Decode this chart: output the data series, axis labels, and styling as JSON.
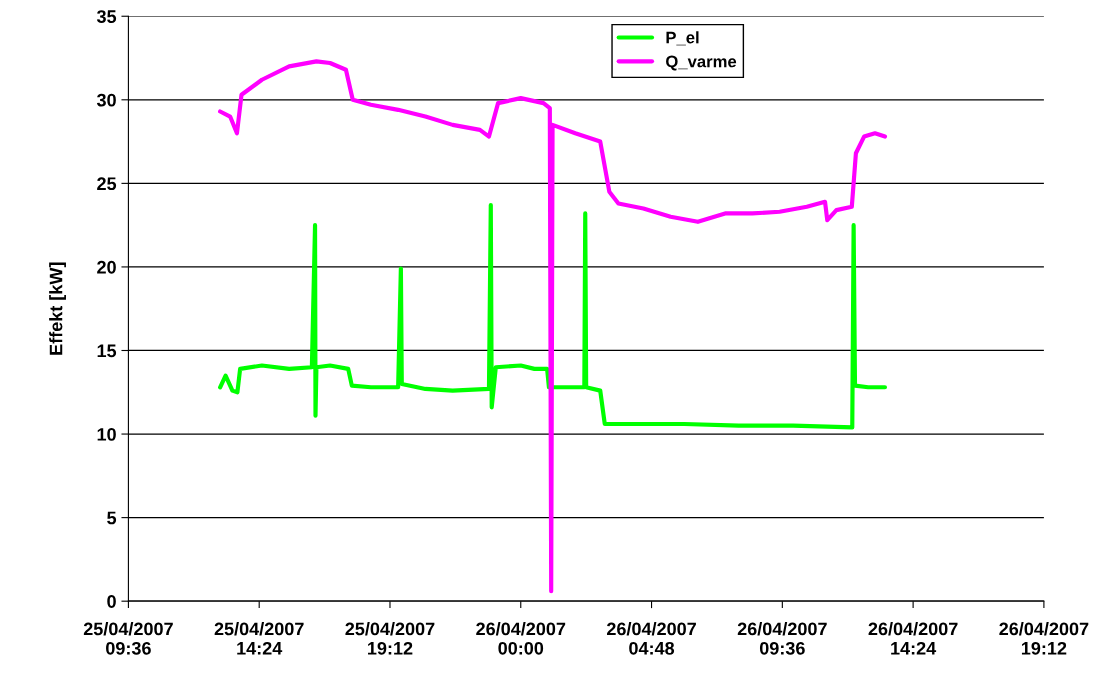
{
  "chart_data": {
    "type": "line",
    "ylabel": "Effekt [kW]",
    "xlim": [
      "2007-04-25T09:36",
      "2007-04-26T19:12"
    ],
    "ylim": [
      0,
      35
    ],
    "yticks": [
      0,
      5,
      10,
      15,
      20,
      25,
      30,
      35
    ],
    "xticks": [
      {
        "value": "2007-04-25T09:36",
        "label": "25/04/2007\n09:36"
      },
      {
        "value": "2007-04-25T14:24",
        "label": "25/04/2007\n14:24"
      },
      {
        "value": "2007-04-25T19:12",
        "label": "25/04/2007\n19:12"
      },
      {
        "value": "2007-04-26T00:00",
        "label": "26/04/2007\n00:00"
      },
      {
        "value": "2007-04-26T04:48",
        "label": "26/04/2007\n04:48"
      },
      {
        "value": "2007-04-26T09:36",
        "label": "26/04/2007\n09:36"
      },
      {
        "value": "2007-04-26T14:24",
        "label": "26/04/2007\n14:24"
      },
      {
        "value": "2007-04-26T19:12",
        "label": "26/04/2007\n19:12"
      }
    ],
    "grid": "y",
    "legend": "top",
    "marker": "none",
    "line_style": "solid",
    "series": [
      {
        "name": "P_el",
        "color": "#00ff00",
        "x": [
          "2007-04-25T12:58",
          "2007-04-25T13:10",
          "2007-04-25T13:25",
          "2007-04-25T13:36",
          "2007-04-25T13:42",
          "2007-04-25T14:30",
          "2007-04-25T15:30",
          "2007-04-25T16:20",
          "2007-04-25T16:27",
          "2007-04-25T16:28",
          "2007-04-25T16:30",
          "2007-04-25T17:00",
          "2007-04-25T17:40",
          "2007-04-25T17:48",
          "2007-04-25T18:30",
          "2007-04-25T19:30",
          "2007-04-25T19:36",
          "2007-04-25T19:38",
          "2007-04-25T20:30",
          "2007-04-25T21:30",
          "2007-04-25T22:50",
          "2007-04-25T22:54",
          "2007-04-25T22:56",
          "2007-04-25T23:05",
          "2007-04-26T00:00",
          "2007-04-26T00:30",
          "2007-04-26T00:58",
          "2007-04-26T01:02",
          "2007-04-26T01:40",
          "2007-04-26T02:20",
          "2007-04-26T02:22",
          "2007-04-26T02:24",
          "2007-04-26T02:55",
          "2007-04-26T03:05",
          "2007-04-26T04:00",
          "2007-04-26T06:00",
          "2007-04-26T08:00",
          "2007-04-26T10:00",
          "2007-04-26T12:10",
          "2007-04-26T12:13",
          "2007-04-26T12:16",
          "2007-04-26T12:45",
          "2007-04-26T13:22"
        ],
        "values": [
          12.8,
          13.5,
          12.6,
          12.5,
          13.9,
          14.1,
          13.9,
          14.0,
          22.5,
          11.1,
          14.0,
          14.1,
          13.9,
          12.9,
          12.8,
          12.8,
          19.9,
          13.0,
          12.7,
          12.6,
          12.7,
          23.7,
          11.6,
          14.0,
          14.1,
          13.9,
          13.9,
          12.8,
          12.8,
          12.8,
          23.2,
          12.8,
          12.6,
          10.6,
          10.6,
          10.6,
          10.5,
          10.5,
          10.4,
          22.5,
          12.9,
          12.8,
          12.8
        ]
      },
      {
        "name": "Q_varme",
        "color": "#ff00ff",
        "x": [
          "2007-04-25T12:58",
          "2007-04-25T13:20",
          "2007-04-25T13:35",
          "2007-04-25T13:45",
          "2007-04-25T14:30",
          "2007-04-25T15:30",
          "2007-04-25T16:30",
          "2007-04-25T17:00",
          "2007-04-25T17:35",
          "2007-04-25T17:50",
          "2007-04-25T18:30",
          "2007-04-25T19:30",
          "2007-04-25T20:30",
          "2007-04-25T21:30",
          "2007-04-25T22:30",
          "2007-04-25T22:50",
          "2007-04-25T23:10",
          "2007-04-26T00:00",
          "2007-04-26T00:50",
          "2007-04-26T01:04",
          "2007-04-26T01:07",
          "2007-04-26T01:10",
          "2007-04-26T02:00",
          "2007-04-26T02:55",
          "2007-04-26T03:15",
          "2007-04-26T03:35",
          "2007-04-26T04:30",
          "2007-04-26T05:30",
          "2007-04-26T06:30",
          "2007-04-26T07:30",
          "2007-04-26T08:30",
          "2007-04-26T09:30",
          "2007-04-26T10:30",
          "2007-04-26T11:10",
          "2007-04-26T11:15",
          "2007-04-26T11:35",
          "2007-04-26T12:09",
          "2007-04-26T12:18",
          "2007-04-26T12:36",
          "2007-04-26T13:00",
          "2007-04-26T13:22"
        ],
        "values": [
          29.3,
          29.0,
          28.0,
          30.3,
          31.2,
          32.0,
          32.3,
          32.2,
          31.8,
          30.0,
          29.7,
          29.4,
          29.0,
          28.5,
          28.2,
          27.8,
          29.8,
          30.1,
          29.8,
          29.5,
          0.6,
          28.5,
          28.0,
          27.5,
          24.5,
          23.8,
          23.5,
          23.0,
          22.7,
          23.2,
          23.2,
          23.3,
          23.6,
          23.9,
          22.8,
          23.4,
          23.6,
          26.8,
          27.8,
          28.0,
          27.8
        ]
      }
    ]
  }
}
